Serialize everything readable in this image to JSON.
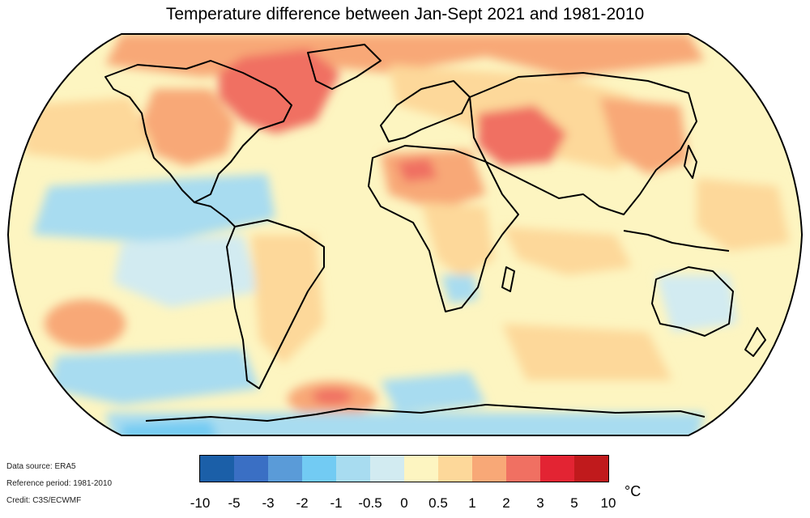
{
  "title": "Temperature difference between Jan-Sept 2021 and 1981-2010",
  "credits": {
    "source": "Data source: ERA5",
    "reference": "Reference period: 1981-2010",
    "credit": "Credit: C3S/ECWMF"
  },
  "legend": {
    "unit": "°C",
    "colors": [
      "#1b5fa8",
      "#3a6fc4",
      "#5a9bd8",
      "#72cbf3",
      "#a8dcf0",
      "#d2ebf1",
      "#fdf5c1",
      "#fdd89a",
      "#f8a877",
      "#f07062",
      "#e32433",
      "#c01a1c"
    ],
    "ticks": [
      "-10",
      "-5",
      "-3",
      "-2",
      "-1",
      "-0.5",
      "0",
      "0.5",
      "1",
      "2",
      "3",
      "5",
      "10"
    ]
  },
  "map": {
    "projection": "robinson",
    "background_color": "#fdf5c1"
  }
}
